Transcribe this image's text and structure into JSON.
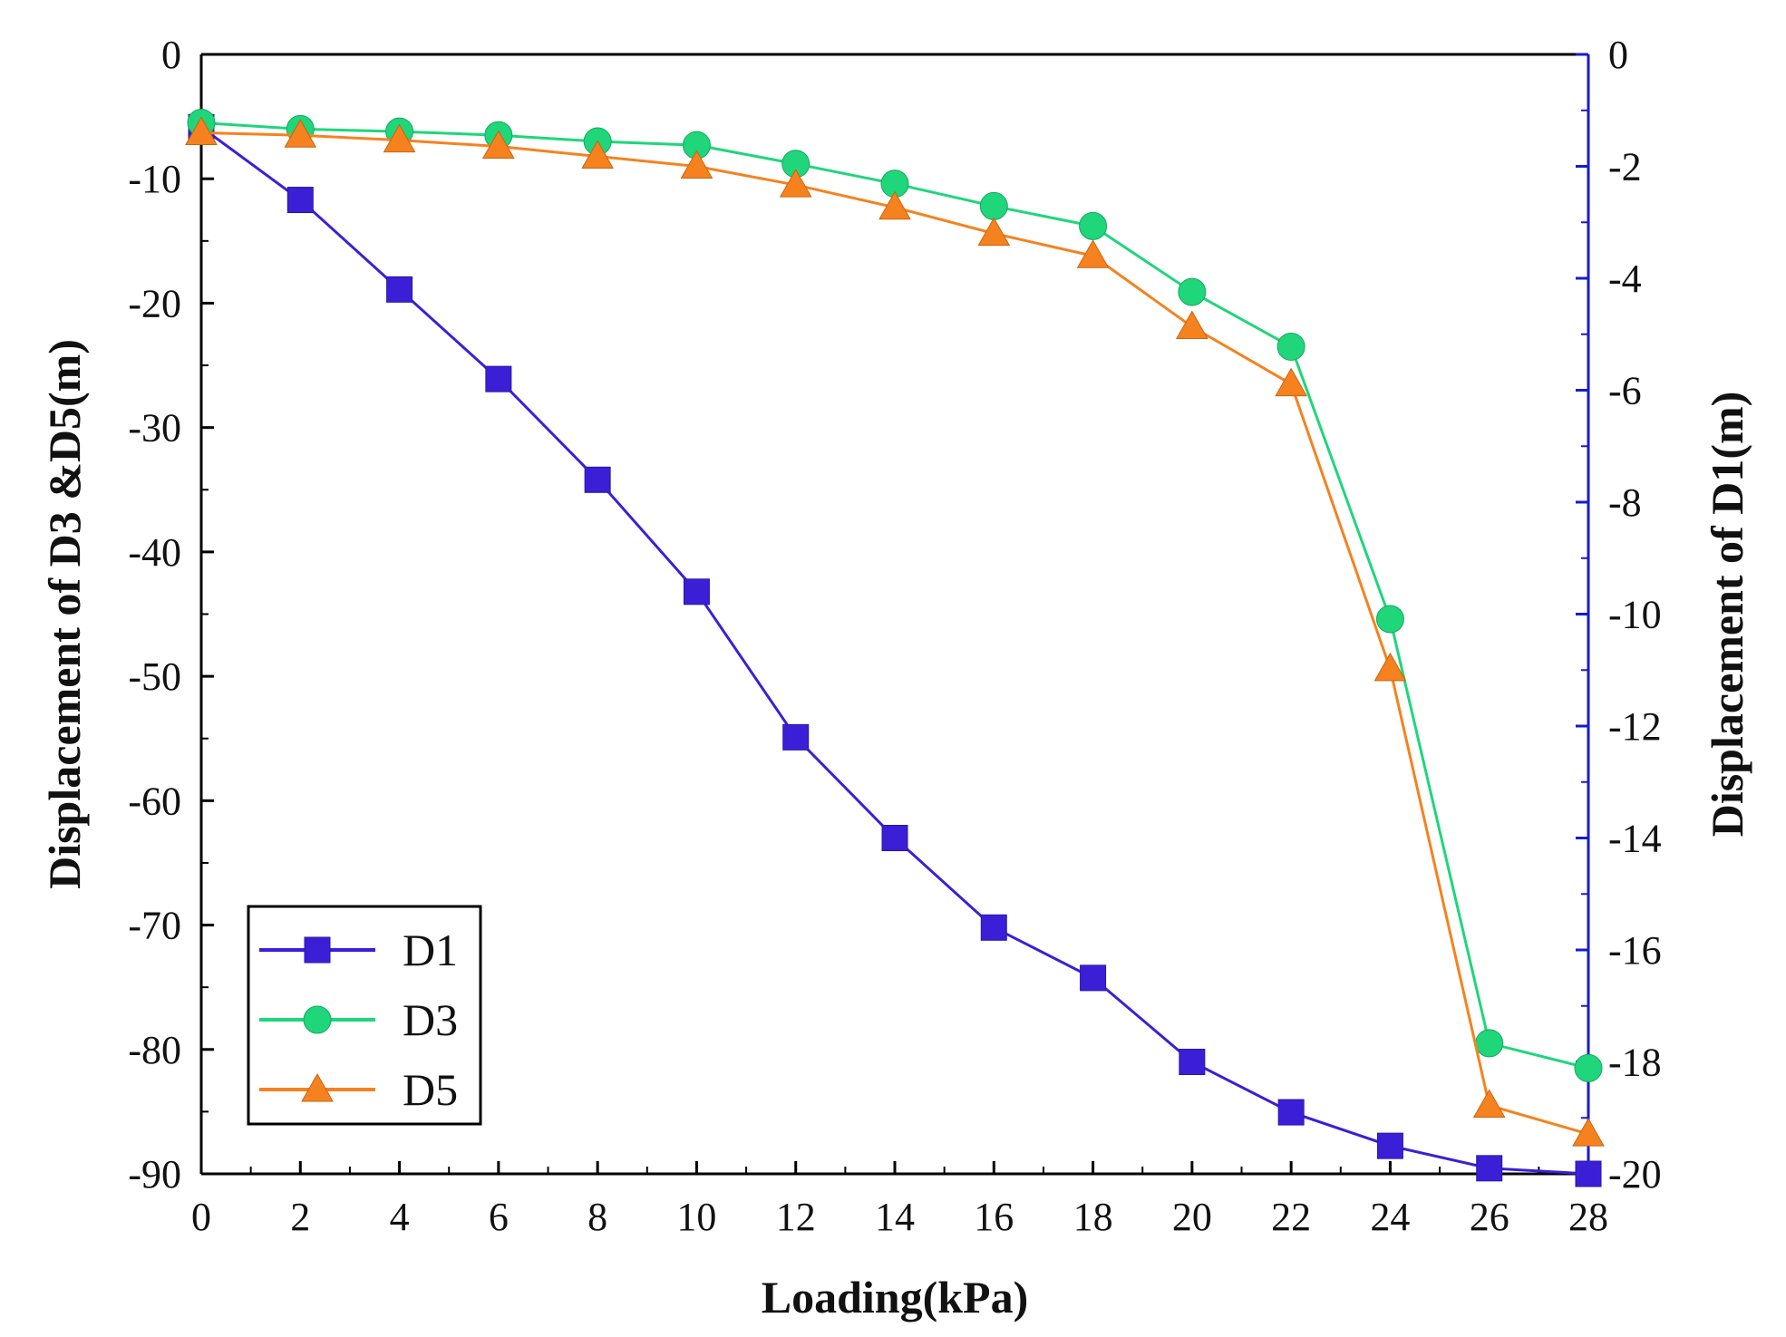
{
  "chart_data": {
    "type": "line",
    "title": "",
    "xlabel": "Loading(kPa)",
    "ylabel_left": "Displacement of D3 &D5(m)",
    "ylabel_right": "Displacement of D1(m)",
    "x": [
      0,
      2,
      4,
      6,
      8,
      10,
      12,
      14,
      16,
      18,
      20,
      22,
      24,
      26,
      28
    ],
    "xlim": [
      0,
      28
    ],
    "ylim_left": [
      -90,
      0
    ],
    "ylim_right": [
      -20,
      0
    ],
    "x_ticks": [
      "0",
      "2",
      "4",
      "6",
      "8",
      "10",
      "12",
      "14",
      "16",
      "18",
      "20",
      "22",
      "24",
      "26",
      "28"
    ],
    "y_ticks_left": [
      "0",
      "-10",
      "-20",
      "-30",
      "-40",
      "-50",
      "-60",
      "-70",
      "-80",
      "-90"
    ],
    "y_ticks_right": [
      "0",
      "-2",
      "-4",
      "-6",
      "-8",
      "-10",
      "-12",
      "-14",
      "-16",
      "-18",
      "-20"
    ],
    "grid": false,
    "legend_position": "bottom-left",
    "series": [
      {
        "name": "D1",
        "axis": "right",
        "marker": "square",
        "color": "#3b1fd6",
        "values": [
          -1.3,
          -2.6,
          -4.2,
          -5.8,
          -7.6,
          -9.6,
          -12.2,
          -14.0,
          -15.6,
          -16.5,
          -18.0,
          -18.9,
          -19.5,
          -19.9,
          -20.0
        ]
      },
      {
        "name": "D3",
        "axis": "left",
        "marker": "circle",
        "color": "#1fd67a",
        "values": [
          -5.5,
          -6.0,
          -6.2,
          -6.5,
          -7.0,
          -7.3,
          -8.8,
          -10.4,
          -12.2,
          -13.8,
          -19.1,
          -23.5,
          -45.4,
          -79.5,
          -81.5
        ]
      },
      {
        "name": "D5",
        "axis": "left",
        "marker": "triangle",
        "color": "#f5821f",
        "values": [
          -6.3,
          -6.5,
          -6.9,
          -7.4,
          -8.2,
          -9.0,
          -10.5,
          -12.3,
          -14.4,
          -16.2,
          -21.9,
          -26.5,
          -49.4,
          -84.5,
          -86.8
        ]
      }
    ]
  }
}
